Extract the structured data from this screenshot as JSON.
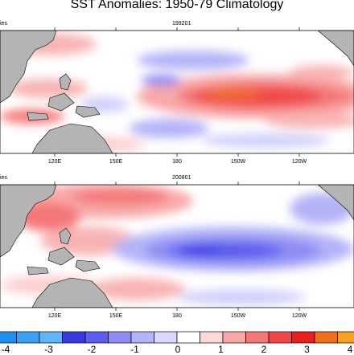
{
  "title": "SST Anomalies: 1950-79 Climatology",
  "panels": [
    {
      "date": "199201",
      "left_fragment": "ies",
      "event": "el-nino"
    },
    {
      "date": "200801",
      "left_fragment": "ies",
      "event": "la-nina"
    }
  ],
  "lon_ticks": [
    "120E",
    "150E",
    "180",
    "150W",
    "120W"
  ],
  "colorbar": {
    "labels": [
      "-4",
      "-3",
      "-2",
      "-1",
      "0",
      "1",
      "2",
      "3",
      "4"
    ],
    "colors": [
      "#1e8ef0",
      "#3aa0f4",
      "#5fb6f6",
      "#3a3ae0",
      "#5c5cf0",
      "#8c8cf4",
      "#b4b4f8",
      "#d8d8fc",
      "#ffffff",
      "#fcd8d8",
      "#f8a8a8",
      "#f47878",
      "#f04848",
      "#e82020",
      "#f07020",
      "#f8a020"
    ]
  },
  "colors": {
    "land": "#b4b4b4",
    "ocean": "#ffffff",
    "frame": "#000000"
  }
}
